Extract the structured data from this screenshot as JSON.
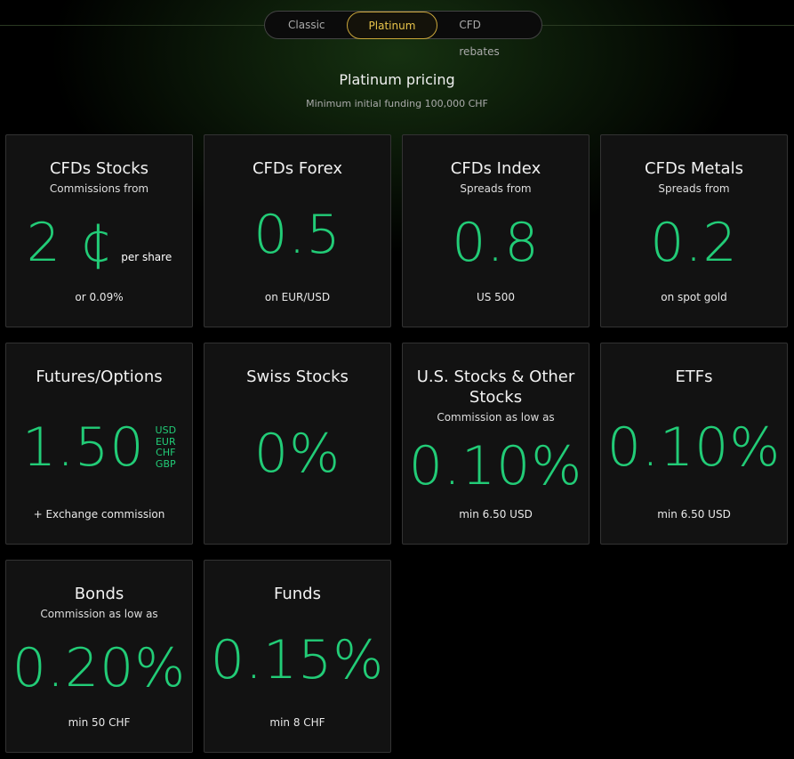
{
  "tabs": {
    "items": [
      "Classic",
      "Platinum",
      "CFD rebates"
    ],
    "active": 1
  },
  "header": {
    "title": "Platinum pricing",
    "subtitle": "Minimum initial funding 100,000 CHF"
  },
  "cards": [
    {
      "title": "CFDs Stocks",
      "subtitle": "Commissions from",
      "value": "2 ¢",
      "suffix": "per share",
      "note": "or 0.09%"
    },
    {
      "title": "CFDs Forex",
      "value": "0.5",
      "note": "on EUR/USD"
    },
    {
      "title": "CFDs Index",
      "subtitle": "Spreads from",
      "value": "0.8",
      "note": "US 500"
    },
    {
      "title": "CFDs Metals",
      "subtitle": "Spreads from",
      "value": "0.2",
      "note": "on spot gold"
    },
    {
      "title": "Futures/Options",
      "value": "1.50",
      "currencies": [
        "USD",
        "EUR",
        "CHF",
        "GBP"
      ],
      "note": "+ Exchange commission"
    },
    {
      "title": "Swiss Stocks",
      "value": "0%"
    },
    {
      "title": "U.S. Stocks & Other Stocks",
      "subtitle": "Commission as low as",
      "value": "0.10%",
      "note": "min 6.50 USD"
    },
    {
      "title": "ETFs",
      "value": "0.10%",
      "note": "min 6.50 USD"
    },
    {
      "title": "Bonds",
      "subtitle": "Commission as low as",
      "value": "0.20%",
      "note": "min 50 CHF"
    },
    {
      "title": "Funds",
      "value": "0.15%",
      "note": "min 8 CHF"
    }
  ]
}
